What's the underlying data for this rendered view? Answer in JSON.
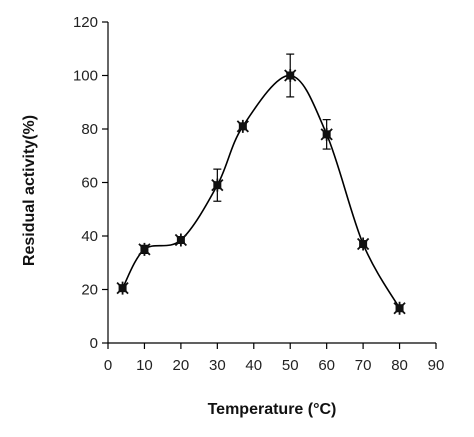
{
  "chart_data": {
    "type": "scatter",
    "title": "",
    "xlabel": "Temperature (°C)",
    "ylabel": "Residual activity(%)",
    "xlim": [
      0,
      90
    ],
    "ylim": [
      0,
      120
    ],
    "xticks": [
      0,
      10,
      20,
      30,
      40,
      50,
      60,
      70,
      80,
      90
    ],
    "yticks": [
      0,
      20,
      40,
      60,
      80,
      100,
      120
    ],
    "grid": false,
    "legend": "none",
    "series": [
      {
        "color": "#000000",
        "marker": "star",
        "line": "smooth",
        "x": [
          4,
          10,
          20,
          30,
          37,
          50,
          60,
          70,
          80
        ],
        "y": [
          20.5,
          35,
          38.5,
          59,
          81,
          100,
          78,
          37,
          13
        ],
        "error": [
          1,
          1.5,
          1,
          6,
          1,
          8,
          5.5,
          1,
          1
        ]
      }
    ]
  }
}
